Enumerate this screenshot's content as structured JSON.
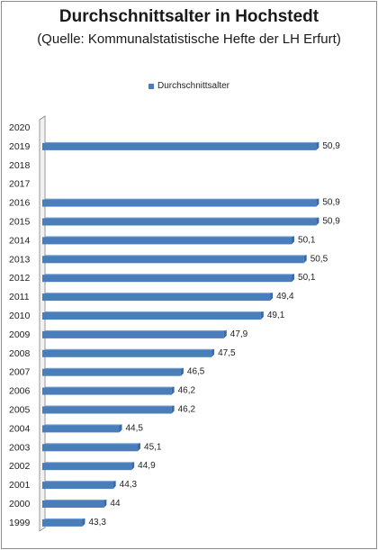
{
  "chart_data": {
    "type": "bar",
    "orientation": "horizontal",
    "title": "Durchschnittsalter in Hochstedt",
    "subtitle": "(Quelle: Kommunalstatistische Hefte der LH Erfurt)",
    "categories": [
      "2020",
      "2019",
      "2018",
      "2017",
      "2016",
      "2015",
      "2014",
      "2013",
      "2012",
      "2011",
      "2010",
      "2009",
      "2008",
      "2007",
      "2006",
      "2005",
      "2004",
      "2003",
      "2002",
      "2001",
      "2000",
      "1999"
    ],
    "series": [
      {
        "name": "Durchschnittsalter",
        "values": [
          null,
          50.9,
          null,
          null,
          50.9,
          50.9,
          50.1,
          50.5,
          50.1,
          49.4,
          49.1,
          47.9,
          47.5,
          46.5,
          46.2,
          46.2,
          44.5,
          45.1,
          44.9,
          44.3,
          44,
          43.3
        ],
        "labels": [
          "",
          "50,9",
          "",
          "",
          "50,9",
          "50,9",
          "50,1",
          "50,5",
          "50,1",
          "49,4",
          "49,1",
          "47,9",
          "47,5",
          "46,5",
          "46,2",
          "46,2",
          "44,5",
          "45,1",
          "44,9",
          "44,3",
          "44",
          "43,3"
        ]
      }
    ],
    "legend_position": "top",
    "grid": false,
    "bar_color": "#4a7ebb",
    "bar_top_color": "#7aa3d6"
  }
}
